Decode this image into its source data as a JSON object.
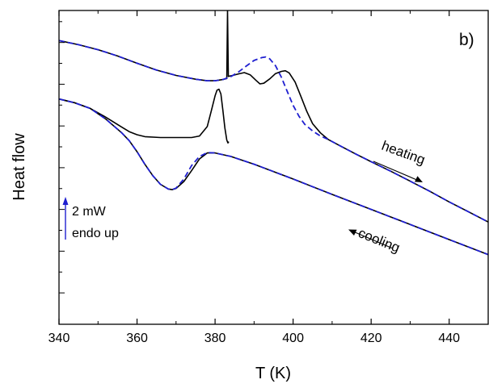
{
  "chart_data": {
    "type": "line",
    "panel_label": "b)",
    "xlabel": "T (K)",
    "ylabel": "Heat flow",
    "xlim": [
      340,
      450
    ],
    "ylim": [
      0,
      100
    ],
    "x_ticks": [
      "340",
      "360",
      "380",
      "400",
      "420",
      "440"
    ],
    "y_tick_labels": "none",
    "grid": false,
    "legend": "none",
    "colors": {
      "solid": "#000000",
      "dashed": "#1f1fd0",
      "scale_arrow": "#1f1fd0"
    },
    "annotations": {
      "heating": "heating",
      "cooling": "cooling",
      "scale_value": "2 mW",
      "scale_note": "endo up"
    },
    "series": [
      {
        "style": "solid",
        "points": [
          [
            340,
            90.4
          ],
          [
            345,
            89.1
          ],
          [
            350,
            87.5
          ],
          [
            355,
            85.5
          ],
          [
            360,
            83.2
          ],
          [
            365,
            81.0
          ],
          [
            370,
            79.3
          ],
          [
            375,
            78.1
          ],
          [
            378,
            77.6
          ],
          [
            380,
            77.6
          ],
          [
            382,
            78.0
          ],
          [
            383,
            78.3
          ],
          [
            383.2,
            99.8
          ],
          [
            383.4,
            79.0
          ],
          [
            384.5,
            79.3
          ],
          [
            386,
            79.8
          ],
          [
            387.5,
            80.2
          ],
          [
            389,
            79.5
          ],
          [
            390.5,
            77.7
          ],
          [
            391.5,
            76.6
          ],
          [
            392.5,
            76.8
          ],
          [
            394,
            78.2
          ],
          [
            395.5,
            79.9
          ],
          [
            397,
            80.6
          ],
          [
            398,
            80.8
          ],
          [
            399,
            80.1
          ],
          [
            400.5,
            77.2
          ],
          [
            402,
            72.6
          ],
          [
            403.5,
            67.9
          ],
          [
            405,
            63.9
          ],
          [
            407,
            61.0
          ],
          [
            409,
            58.9
          ],
          [
            412,
            56.9
          ],
          [
            416,
            54.3
          ],
          [
            420,
            51.8
          ],
          [
            425,
            48.8
          ],
          [
            430,
            45.6
          ],
          [
            435,
            42.4
          ],
          [
            440,
            39.0
          ],
          [
            445,
            35.8
          ],
          [
            450,
            32.6
          ]
        ]
      },
      {
        "style": "dashed",
        "points": [
          [
            340,
            90.4
          ],
          [
            345,
            89.1
          ],
          [
            350,
            87.5
          ],
          [
            355,
            85.5
          ],
          [
            360,
            83.2
          ],
          [
            365,
            81.0
          ],
          [
            370,
            79.3
          ],
          [
            375,
            78.1
          ],
          [
            378,
            77.6
          ],
          [
            380,
            77.6
          ],
          [
            382,
            78.0
          ],
          [
            384,
            78.9
          ],
          [
            386,
            80.4
          ],
          [
            388,
            82.3
          ],
          [
            390,
            84.1
          ],
          [
            392,
            85.0
          ],
          [
            393,
            85.2
          ],
          [
            394,
            84.6
          ],
          [
            395.5,
            82.4
          ],
          [
            397,
            78.7
          ],
          [
            398.5,
            74.2
          ],
          [
            400,
            69.8
          ],
          [
            401.5,
            66.3
          ],
          [
            403,
            63.7
          ],
          [
            405,
            61.6
          ],
          [
            407,
            60.0
          ],
          [
            409,
            58.9
          ],
          [
            412,
            56.9
          ],
          [
            416,
            54.3
          ],
          [
            420,
            51.8
          ],
          [
            425,
            48.8
          ],
          [
            430,
            45.6
          ],
          [
            435,
            42.4
          ],
          [
            440,
            39.0
          ],
          [
            445,
            35.8
          ],
          [
            450,
            32.6
          ]
        ]
      },
      {
        "style": "solid",
        "points": [
          [
            340,
            71.8
          ],
          [
            344,
            70.6
          ],
          [
            348,
            68.8
          ],
          [
            352,
            66.0
          ],
          [
            356,
            62.9
          ],
          [
            358,
            61.4
          ],
          [
            360,
            60.4
          ],
          [
            362,
            59.8
          ],
          [
            366,
            59.5
          ],
          [
            370,
            59.5
          ],
          [
            374,
            59.5
          ],
          [
            376,
            60.0
          ],
          [
            378,
            63.0
          ],
          [
            379,
            67.9
          ],
          [
            380,
            72.8
          ],
          [
            380.5,
            74.6
          ],
          [
            381,
            74.9
          ],
          [
            381.5,
            73.4
          ],
          [
            382,
            68.3
          ],
          [
            382.5,
            62.6
          ],
          [
            383,
            58.7
          ],
          [
            383.3,
            57.8
          ],
          [
            383.5,
            58.2
          ]
        ]
      },
      {
        "style": "solid",
        "points": [
          [
            340,
            71.8
          ],
          [
            344,
            70.6
          ],
          [
            348,
            68.8
          ],
          [
            352,
            65.4
          ],
          [
            356,
            61.1
          ],
          [
            358,
            58.5
          ],
          [
            360,
            55.0
          ],
          [
            362,
            51.0
          ],
          [
            364,
            47.4
          ],
          [
            366,
            44.6
          ],
          [
            368,
            43.1
          ],
          [
            369,
            42.9
          ],
          [
            370,
            43.3
          ],
          [
            372,
            45.5
          ],
          [
            374,
            49.0
          ],
          [
            376,
            52.7
          ],
          [
            378,
            54.6
          ],
          [
            380,
            54.6
          ],
          [
            384,
            53.5
          ],
          [
            390,
            51.0
          ],
          [
            400,
            46.3
          ],
          [
            410,
            41.4
          ],
          [
            420,
            36.6
          ],
          [
            430,
            31.8
          ],
          [
            440,
            27.0
          ],
          [
            450,
            22.2
          ]
        ]
      },
      {
        "style": "dashed",
        "points": [
          [
            340,
            71.8
          ],
          [
            344,
            70.6
          ],
          [
            348,
            68.8
          ],
          [
            352,
            65.4
          ],
          [
            356,
            61.1
          ],
          [
            358,
            58.5
          ],
          [
            360,
            55.0
          ],
          [
            362,
            51.0
          ],
          [
            364,
            47.4
          ],
          [
            366,
            44.6
          ],
          [
            368,
            43.1
          ],
          [
            369,
            42.9
          ],
          [
            370,
            43.4
          ],
          [
            372,
            46.3
          ],
          [
            374,
            50.6
          ],
          [
            376,
            53.5
          ],
          [
            378,
            54.7
          ],
          [
            380,
            54.6
          ],
          [
            384,
            53.5
          ],
          [
            390,
            51.0
          ],
          [
            400,
            46.3
          ],
          [
            410,
            41.4
          ],
          [
            420,
            36.6
          ],
          [
            430,
            31.8
          ],
          [
            440,
            27.0
          ],
          [
            450,
            22.2
          ]
        ]
      }
    ]
  }
}
